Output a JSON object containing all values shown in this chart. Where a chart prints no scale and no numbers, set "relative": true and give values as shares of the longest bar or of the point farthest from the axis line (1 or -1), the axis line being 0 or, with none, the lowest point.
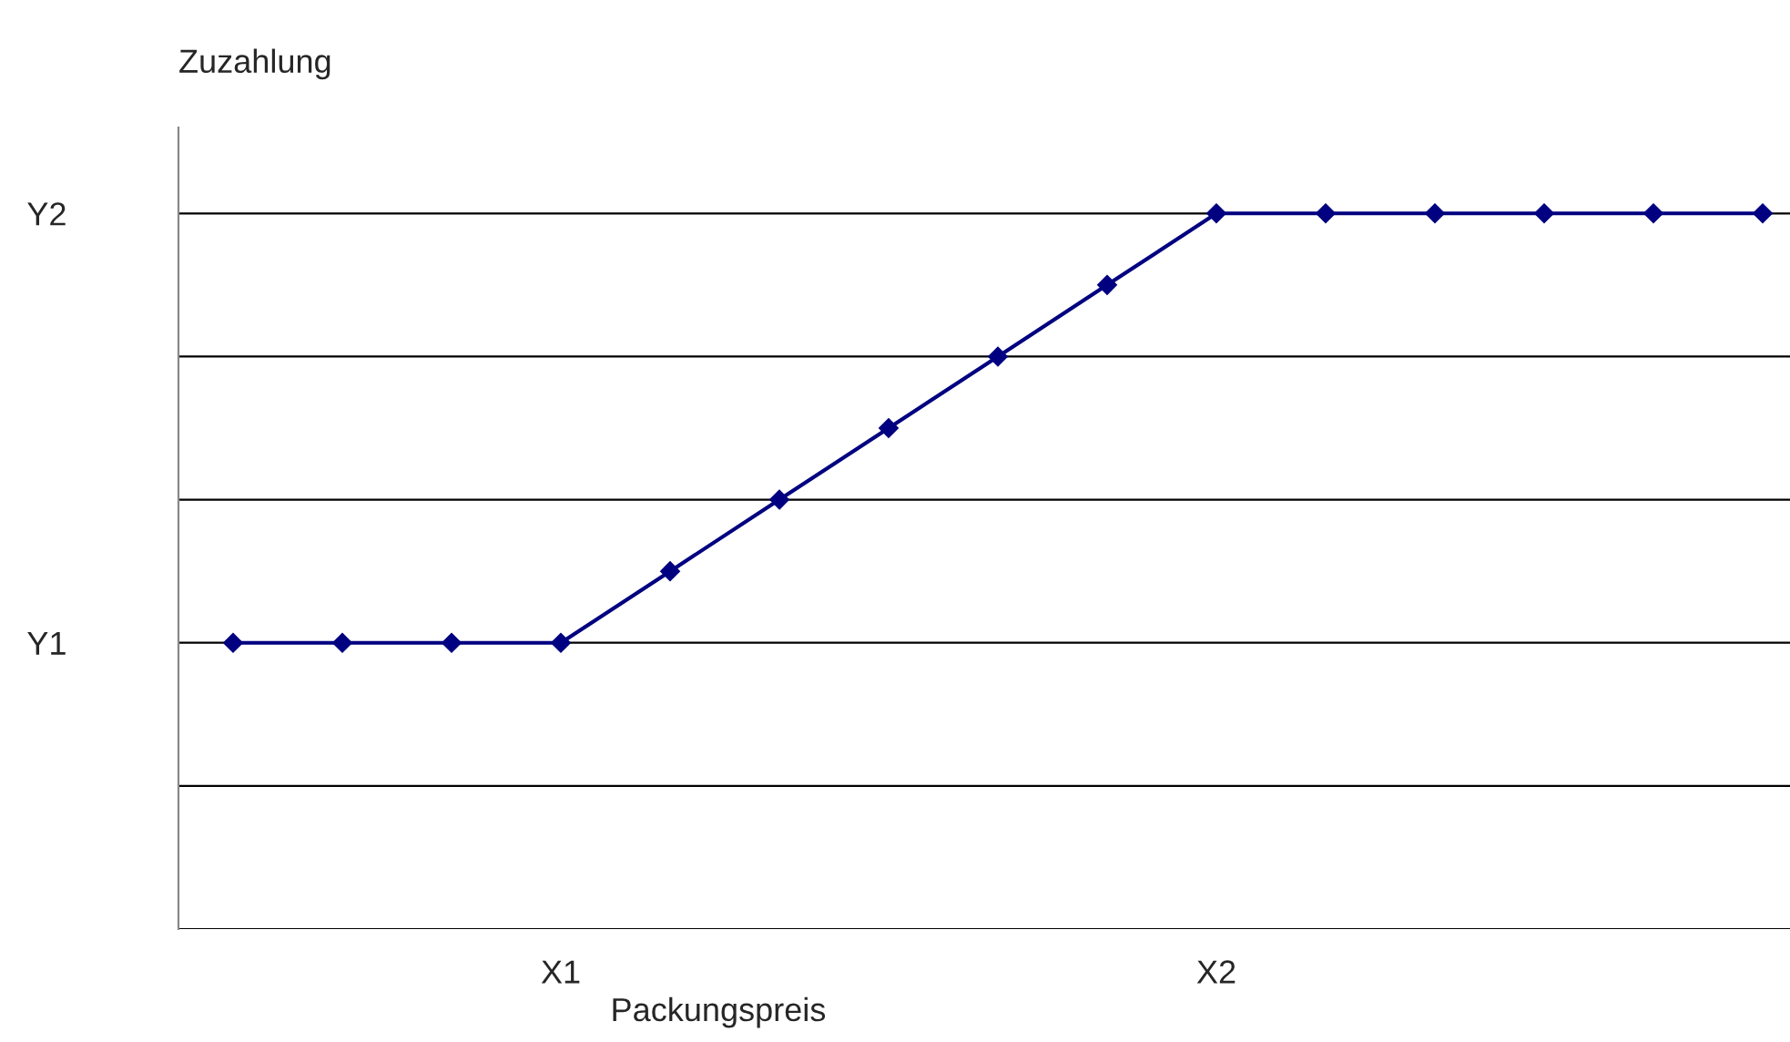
{
  "chart_data": {
    "type": "line",
    "relative": true,
    "ylabel": "Zuzahlung",
    "xlabel": "Packungspreis",
    "categories": [
      null,
      null,
      null,
      "X1",
      null,
      null,
      null,
      null,
      null,
      "X2",
      null,
      null,
      null,
      null,
      null
    ],
    "series": [
      {
        "color": "#000080",
        "values": [
          0.4,
          0.4,
          0.4,
          0.4,
          0.5,
          0.6,
          0.7,
          0.8,
          0.9,
          1.0,
          1.0,
          1.0,
          1.0,
          1.0,
          1.0
        ]
      }
    ],
    "annotations": [
      "Y1",
      "Y2"
    ],
    "grid": "y",
    "marker": "diamond",
    "line_style": "solid",
    "legend": false
  }
}
